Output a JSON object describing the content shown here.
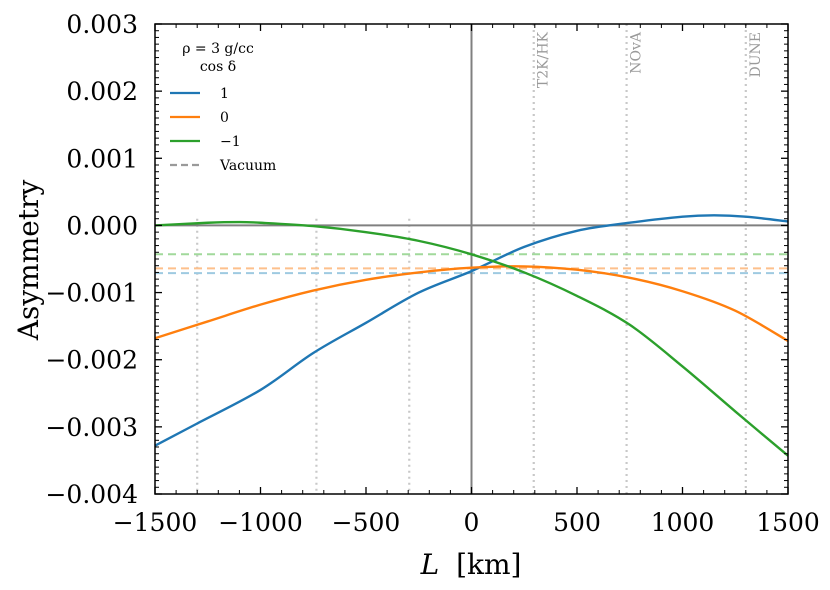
{
  "chart_data": {
    "type": "line",
    "title": "",
    "xlabel_var": "L",
    "xlabel_unit": "[km]",
    "ylabel": "Asymmetry",
    "xlim": [
      -1500,
      1500
    ],
    "ylim": [
      -0.004,
      0.003
    ],
    "x_ticks": [
      -1500,
      -1000,
      -500,
      0,
      500,
      1000,
      1500
    ],
    "x_tick_labels": [
      "−1500",
      "−1000",
      "−500",
      "0",
      "500",
      "1000",
      "1500"
    ],
    "y_ticks": [
      0.003,
      0.002,
      0.001,
      0.0,
      -0.001,
      -0.002,
      -0.003,
      -0.004
    ],
    "y_tick_labels": [
      "0.003",
      "0.002",
      "0.001",
      "0.000",
      "−0.001",
      "−0.002",
      "−0.003",
      "−0.004"
    ],
    "experiments": [
      {
        "name": "T2K/HK",
        "L": 295
      },
      {
        "name": "NOvA",
        "L": 735
      },
      {
        "name": "DUNE",
        "L": 1300
      }
    ],
    "mirror_lines_L": [
      -1300,
      -735,
      -295
    ],
    "legend": {
      "title_line1": "ρ = 3 g/cc",
      "title_line2": "cos δ",
      "position": "top-left"
    },
    "series": [
      {
        "name": "1",
        "color": "#1f77b4",
        "x": [
          -1500,
          -1300,
          -1000,
          -750,
          -500,
          -250,
          0,
          250,
          500,
          750,
          1000,
          1150,
          1300,
          1500
        ],
        "y": [
          -0.00328,
          -0.00295,
          -0.00245,
          -0.0019,
          -0.00145,
          -0.001,
          -0.00068,
          -0.00032,
          -8e-05,
          4e-05,
          0.00013,
          0.00015,
          0.00013,
          6e-05
        ]
      },
      {
        "name": "0",
        "color": "#ff7f0e",
        "x": [
          -1500,
          -1250,
          -1000,
          -750,
          -500,
          -250,
          0,
          250,
          500,
          750,
          1000,
          1250,
          1500
        ],
        "y": [
          -0.00168,
          -0.00143,
          -0.00118,
          -0.00097,
          -0.00081,
          -0.0007,
          -0.00063,
          -0.00061,
          -0.00066,
          -0.00078,
          -0.00098,
          -0.00127,
          -0.00172
        ]
      },
      {
        "name": "−1",
        "color": "#2ca02c",
        "x": [
          -1500,
          -1250,
          -1100,
          -1000,
          -750,
          -500,
          -250,
          0,
          250,
          500,
          750,
          1000,
          1250,
          1500
        ],
        "y": [
          0.0,
          4e-05,
          5e-05,
          4e-05,
          -1e-05,
          -0.0001,
          -0.00023,
          -0.00043,
          -0.0007,
          -0.00105,
          -0.00148,
          -0.0021,
          -0.00277,
          -0.00343
        ]
      }
    ],
    "vacuum": {
      "name": "Vacuum",
      "color": "#9a9a9a",
      "levels": [
        {
          "cos_delta": "1",
          "value": -0.00071,
          "color": "#9ecae1"
        },
        {
          "cos_delta": "0",
          "value": -0.00064,
          "color": "#fdc08c"
        },
        {
          "cos_delta": "−1",
          "value": -0.00043,
          "color": "#a1d99b"
        }
      ]
    }
  }
}
